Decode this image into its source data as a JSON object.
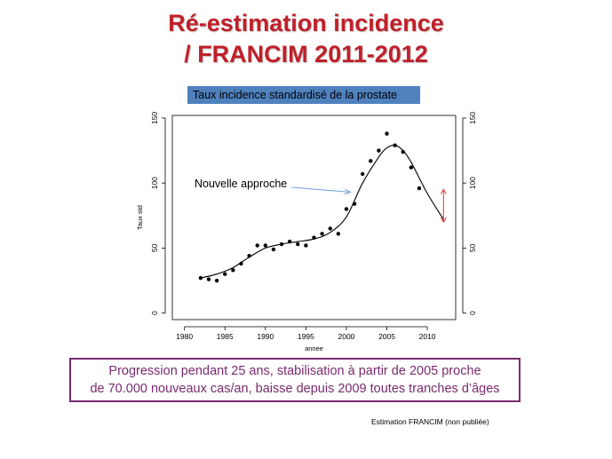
{
  "title": {
    "line1": "Ré-estimation incidence",
    "line2": "/ FRANCIM 2011-2012"
  },
  "banner": "Taux incidence standardisé de la prostate",
  "summary": {
    "line1": "Progression pendant  25 ans, stabilisation à partir de 2005 proche",
    "line2": "de 70.000 nouveaux cas/an, baisse depuis 2009 toutes tranches d’âges"
  },
  "source_note": "Estimation FRANCIM (non publiée)",
  "colors": {
    "title": "#c0202a",
    "banner": "#4f81bd",
    "summary": "#7a2a6e",
    "annotation_arrow": "#6fa0d8",
    "range_arrow": "#e03030"
  },
  "chart_data": {
    "type": "scatter",
    "xlabel": "annee",
    "ylabel": "Taux std",
    "xlim": [
      1978.5,
      2013.5
    ],
    "ylim": [
      -5,
      152
    ],
    "xticks": [
      1980,
      1985,
      1990,
      1995,
      2000,
      2005,
      2010
    ],
    "yticks": [
      0,
      50,
      100,
      150
    ],
    "right_axis_ticks": [
      0,
      50,
      100,
      150
    ],
    "grid": false,
    "points": {
      "x": [
        1982,
        1983,
        1984,
        1985,
        1986,
        1987,
        1988,
        1989,
        1990,
        1991,
        1992,
        1993,
        1994,
        1995,
        1996,
        1997,
        1998,
        1999,
        2000,
        2001,
        2002,
        2003,
        2004,
        2005,
        2006,
        2007,
        2008,
        2009
      ],
      "y": [
        27,
        26,
        25,
        30,
        33,
        38,
        44,
        52,
        52,
        49,
        53,
        55,
        53,
        52,
        58,
        61,
        65,
        61,
        80,
        84,
        107,
        117,
        125,
        138,
        129,
        124,
        112,
        96
      ]
    },
    "fitted_curve": {
      "x": [
        1982,
        1984,
        1986,
        1988,
        1990,
        1992,
        1994,
        1996,
        1998,
        2000,
        2002,
        2004,
        2005,
        2006,
        2007,
        2008,
        2010,
        2012
      ],
      "y": [
        27,
        30,
        35,
        43,
        50,
        53,
        55,
        57,
        62,
        74,
        100,
        120,
        127,
        129,
        125,
        116,
        92,
        72
      ]
    },
    "annotation": {
      "text": "Nouvelle approche",
      "arrow_to": [
        2000.5,
        93
      ]
    },
    "range_marker": {
      "x": 2012,
      "y": [
        70,
        95
      ]
    }
  }
}
